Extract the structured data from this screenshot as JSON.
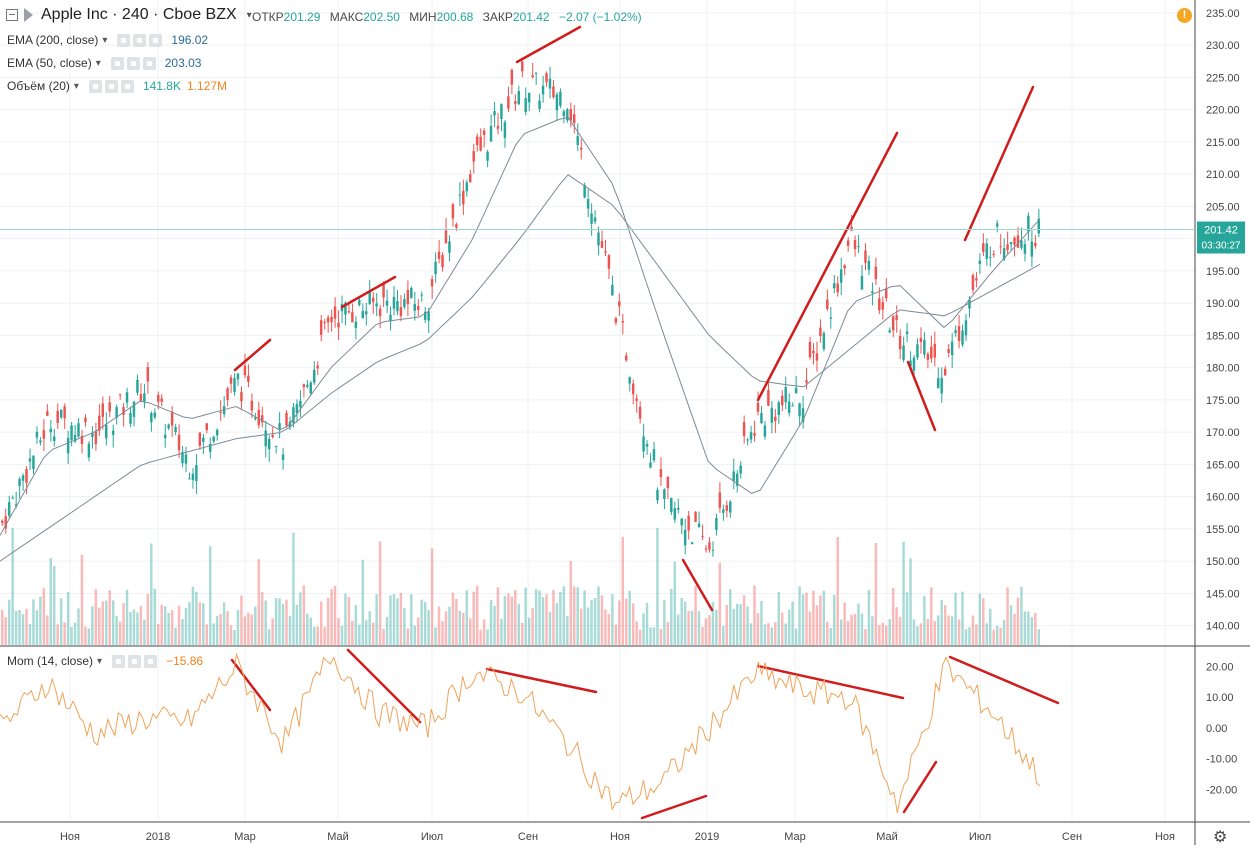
{
  "header": {
    "symbol": "Apple Inc · 240 · Cboe BZX",
    "ohlc": [
      {
        "k": "ОТКР",
        "v": "201.29"
      },
      {
        "k": "МАКС",
        "v": "202.50"
      },
      {
        "k": "МИН",
        "v": "200.68"
      },
      {
        "k": "ЗАКР",
        "v": "201.42"
      }
    ],
    "change": "−2.07 (−1.02%)",
    "alert_icon": "!"
  },
  "indicators": [
    {
      "label": "EMA (200, close)",
      "values": [
        "196.02"
      ],
      "colors": [
        "#2c6e8f"
      ]
    },
    {
      "label": "EMA (50, close)",
      "values": [
        "203.03"
      ],
      "colors": [
        "#2c6e8f"
      ]
    },
    {
      "label": "Объём (20)",
      "values": [
        "141.8K",
        "1.127M"
      ],
      "colors": [
        "#26a69a",
        "#f0831e"
      ]
    }
  ],
  "momentum_legend": {
    "label": "Mom (14, close)",
    "value": "−15.86",
    "color": "#f0831e"
  },
  "price_tag": {
    "value": "201.42",
    "time": "03:30:27",
    "color": "#26a69a"
  },
  "colors": {
    "up": "#26a69a",
    "down": "#ef5350",
    "ema": "#7d8a96",
    "momentum": "#f0a35a",
    "trend": "#d01c1c",
    "grid": "#eef1f4"
  },
  "chart_data": [
    {
      "type": "candlestick",
      "title": "Apple Inc · 240 · Cboe BZX",
      "x_ticks": [
        "Ноя",
        "2018",
        "Мар",
        "Май",
        "Июл",
        "Сен",
        "Ноя",
        "2019",
        "Мар",
        "Май",
        "Июл",
        "Сен",
        "Ноя"
      ],
      "y_ticks": [
        140,
        145,
        150,
        155,
        160,
        165,
        170,
        175,
        180,
        185,
        190,
        195,
        200,
        205,
        210,
        215,
        220,
        225,
        230,
        235
      ],
      "ylim": [
        137,
        237
      ],
      "x": [
        "2017-10",
        "2017-11",
        "2017-12",
        "2018-01",
        "2018-02",
        "2018-03",
        "2018-04",
        "2018-05",
        "2018-06",
        "2018-07",
        "2018-08",
        "2018-09",
        "2018-10",
        "2018-11",
        "2018-12",
        "2019-01",
        "2019-02",
        "2019-03",
        "2019-04",
        "2019-05",
        "2019-06",
        "2019-07",
        "2019-08"
      ],
      "series": [
        {
          "name": "Price",
          "values": [
            156,
            172,
            170,
            177,
            165,
            178,
            168,
            188,
            190,
            190,
            212,
            224,
            222,
            190,
            160,
            152,
            172,
            176,
            200,
            185,
            180,
            200,
            201.42
          ]
        },
        {
          "name": "EMA (50, close)",
          "values": [
            154,
            167,
            170,
            175,
            172,
            174,
            170,
            180,
            187,
            188,
            200,
            216,
            219,
            208,
            186,
            165,
            160,
            172,
            190,
            193,
            186,
            195,
            203.03
          ]
        },
        {
          "name": "EMA (200, close)",
          "values": [
            150,
            155,
            160,
            165,
            167,
            169,
            170,
            176,
            181,
            184,
            191,
            200,
            210,
            205,
            195,
            185,
            178,
            177,
            183,
            189,
            188,
            192,
            196.02
          ]
        }
      ]
    },
    {
      "type": "line",
      "title": "Mom (14, close)",
      "y_ticks": [
        -20,
        -10,
        0,
        10,
        20
      ],
      "ylim": [
        -30,
        26
      ],
      "x": [
        "2017-10",
        "2017-11",
        "2017-12",
        "2018-01",
        "2018-02",
        "2018-03",
        "2018-04",
        "2018-05",
        "2018-06",
        "2018-07",
        "2018-08",
        "2018-09",
        "2018-10",
        "2018-11",
        "2018-12",
        "2019-01",
        "2019-02",
        "2019-03",
        "2019-04",
        "2019-05",
        "2019-06",
        "2019-07",
        "2019-08"
      ],
      "series": [
        {
          "name": "Mom (14, close)",
          "values": [
            0,
            15,
            -2,
            3,
            2,
            20,
            -5,
            24,
            5,
            0,
            18,
            12,
            -5,
            -25,
            -18,
            0,
            18,
            12,
            10,
            -25,
            20,
            5,
            -15.86
          ]
        }
      ]
    }
  ]
}
